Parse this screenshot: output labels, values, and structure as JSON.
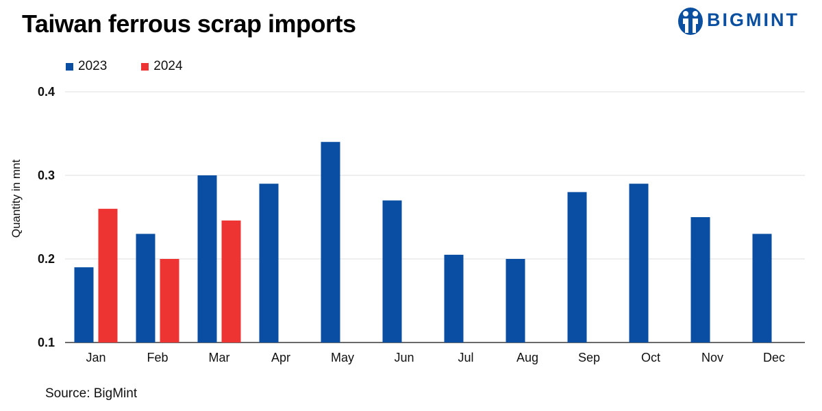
{
  "title": "Taiwan ferrous scrap imports",
  "brand": "BIGMINT",
  "source": "Source: BigMint",
  "colors": {
    "s2023": "#0a4ea3",
    "s2024": "#ee3333",
    "grid": "#dcdcdc",
    "brand": "#0a4fa0"
  },
  "chart_data": {
    "type": "bar",
    "title": "Taiwan ferrous scrap imports",
    "xlabel": "",
    "ylabel": "Quantity in mnt",
    "ylim": [
      0.1,
      0.4
    ],
    "yticks": [
      "0.1",
      "0.2",
      "0.3",
      "0.4"
    ],
    "grid": true,
    "legend_position": "top-left",
    "categories": [
      "Jan",
      "Feb",
      "Mar",
      "Apr",
      "May",
      "Jun",
      "Jul",
      "Aug",
      "Sep",
      "Oct",
      "Nov",
      "Dec"
    ],
    "series": [
      {
        "name": "2023",
        "values": [
          0.19,
          0.23,
          0.3,
          0.29,
          0.34,
          0.27,
          0.205,
          0.2,
          0.28,
          0.29,
          0.25,
          0.23
        ]
      },
      {
        "name": "2024",
        "values": [
          0.26,
          0.2,
          0.246,
          null,
          null,
          null,
          null,
          null,
          null,
          null,
          null,
          null
        ]
      }
    ]
  }
}
